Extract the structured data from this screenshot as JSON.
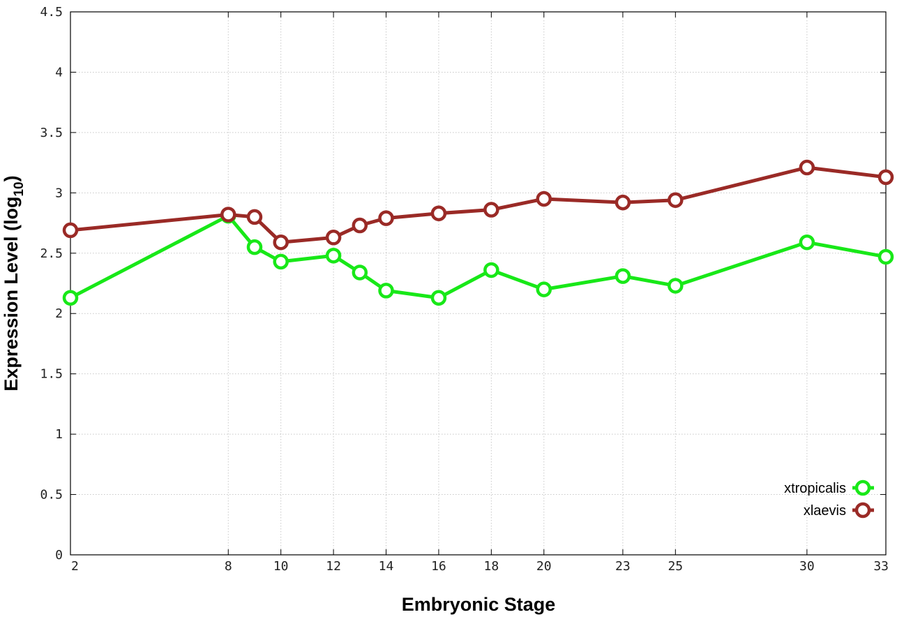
{
  "chart_data": {
    "type": "line",
    "title": "",
    "xlabel": "Embryonic Stage",
    "ylabel_main": "Expression Level (log",
    "ylabel_sub": "10",
    "ylabel_close": ")",
    "x": [
      2,
      8,
      9,
      10,
      12,
      13,
      14,
      16,
      18,
      20,
      23,
      25,
      30,
      33
    ],
    "x_ticks": [
      2,
      8,
      10,
      12,
      14,
      16,
      18,
      20,
      23,
      25,
      30,
      33
    ],
    "x_tick_labels": [
      "2",
      "8",
      "10",
      "12",
      "14",
      "16",
      "18",
      "20",
      "23",
      "25",
      "30",
      "33"
    ],
    "xlim": [
      2,
      33
    ],
    "y_ticks": [
      0,
      0.5,
      1,
      1.5,
      2,
      2.5,
      3,
      3.5,
      4,
      4.5
    ],
    "y_tick_labels": [
      "0",
      "0.5",
      "1",
      "1.5",
      "2",
      "2.5",
      "3",
      "3.5",
      "4",
      "4.5"
    ],
    "ylim": [
      0,
      4.5
    ],
    "grid": true,
    "legend_position": "bottom-right",
    "series": [
      {
        "name": "xtropicalis",
        "color": "#18e818",
        "values": [
          2.13,
          2.81,
          2.55,
          2.43,
          2.48,
          2.34,
          2.19,
          2.13,
          2.36,
          2.2,
          2.31,
          2.23,
          2.59,
          2.47
        ]
      },
      {
        "name": "xlaevis",
        "color": "#9a2a26",
        "values": [
          2.69,
          2.82,
          2.8,
          2.59,
          2.63,
          2.73,
          2.79,
          2.83,
          2.86,
          2.95,
          2.92,
          2.94,
          3.21,
          3.13
        ]
      }
    ]
  }
}
